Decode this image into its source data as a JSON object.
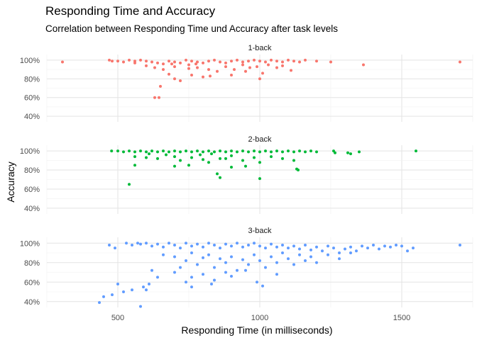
{
  "chart_data": {
    "type": "scatter",
    "title": "Responding Time and Accuracy",
    "subtitle": "Correlation between Responding Time und Accuracy after task levels",
    "xlabel": "Responding Time (in milliseconds)",
    "ylabel": "Accuracy",
    "xlim": [
      250,
      1750
    ],
    "ylim": [
      0.34,
      1.06
    ],
    "x_ticks": [
      500,
      1000,
      1500
    ],
    "y_ticks": [
      0.4,
      0.6,
      0.8,
      1.0
    ],
    "y_tick_labels": [
      "40%",
      "60%",
      "80%",
      "100%"
    ],
    "grid": true,
    "facets": [
      {
        "label": "1-back",
        "color": "#F8766D",
        "points": [
          [
            305,
            0.98
          ],
          [
            470,
            1.0
          ],
          [
            480,
            0.99
          ],
          [
            500,
            0.99
          ],
          [
            520,
            0.98
          ],
          [
            540,
            1.0
          ],
          [
            560,
            0.99
          ],
          [
            580,
            1.0
          ],
          [
            600,
            0.99
          ],
          [
            620,
            0.98
          ],
          [
            640,
            0.97
          ],
          [
            660,
            0.96
          ],
          [
            680,
            0.99
          ],
          [
            700,
            0.98
          ],
          [
            720,
            0.97
          ],
          [
            740,
            1.0
          ],
          [
            760,
            0.99
          ],
          [
            780,
            0.98
          ],
          [
            800,
            0.97
          ],
          [
            820,
            0.99
          ],
          [
            840,
            1.0
          ],
          [
            860,
            0.98
          ],
          [
            880,
            0.97
          ],
          [
            900,
            0.99
          ],
          [
            920,
            1.0
          ],
          [
            940,
            0.98
          ],
          [
            960,
            0.99
          ],
          [
            980,
            1.0
          ],
          [
            1000,
            0.99
          ],
          [
            1020,
            0.98
          ],
          [
            1040,
            1.0
          ],
          [
            1060,
            0.99
          ],
          [
            1080,
            0.98
          ],
          [
            1100,
            1.0
          ],
          [
            1120,
            0.99
          ],
          [
            1140,
            0.98
          ],
          [
            1160,
            1.0
          ],
          [
            1200,
            0.99
          ],
          [
            1250,
            0.98
          ],
          [
            1365,
            0.95
          ],
          [
            1705,
            0.98
          ],
          [
            600,
            0.94
          ],
          [
            630,
            0.92
          ],
          [
            660,
            0.9
          ],
          [
            700,
            0.93
          ],
          [
            750,
            0.95
          ],
          [
            780,
            0.92
          ],
          [
            820,
            0.9
          ],
          [
            850,
            0.88
          ],
          [
            880,
            0.93
          ],
          [
            910,
            0.9
          ],
          [
            950,
            0.88
          ],
          [
            990,
            0.93
          ],
          [
            1010,
            0.86
          ],
          [
            1060,
            0.92
          ],
          [
            1110,
            0.89
          ],
          [
            700,
            0.8
          ],
          [
            680,
            0.85
          ],
          [
            760,
            0.84
          ],
          [
            800,
            0.82
          ],
          [
            900,
            0.84
          ],
          [
            1000,
            0.8
          ],
          [
            720,
            0.78
          ],
          [
            650,
            0.72
          ],
          [
            825,
            0.83
          ],
          [
            750,
            0.91
          ],
          [
            775,
            0.96
          ],
          [
            690,
            0.96
          ],
          [
            560,
            0.97
          ],
          [
            940,
            0.95
          ],
          [
            965,
            0.92
          ],
          [
            1030,
            0.95
          ],
          [
            1080,
            0.94
          ],
          [
            630,
            0.6
          ],
          [
            645,
            0.6
          ]
        ]
      },
      {
        "label": "2-back",
        "color": "#00BA38",
        "points": [
          [
            478,
            1.0
          ],
          [
            500,
            1.0
          ],
          [
            520,
            0.99
          ],
          [
            540,
            1.0
          ],
          [
            560,
            0.99
          ],
          [
            580,
            1.0
          ],
          [
            600,
            0.99
          ],
          [
            620,
            1.0
          ],
          [
            640,
            0.99
          ],
          [
            660,
            1.0
          ],
          [
            680,
            0.99
          ],
          [
            700,
            1.0
          ],
          [
            720,
            0.99
          ],
          [
            740,
            1.0
          ],
          [
            760,
            0.99
          ],
          [
            780,
            1.0
          ],
          [
            800,
            0.99
          ],
          [
            820,
            1.0
          ],
          [
            840,
            0.99
          ],
          [
            860,
            1.0
          ],
          [
            880,
            0.99
          ],
          [
            900,
            1.0
          ],
          [
            920,
            0.99
          ],
          [
            940,
            1.0
          ],
          [
            960,
            0.99
          ],
          [
            980,
            1.0
          ],
          [
            1000,
            0.99
          ],
          [
            1020,
            1.0
          ],
          [
            1040,
            0.99
          ],
          [
            1060,
            1.0
          ],
          [
            1080,
            0.99
          ],
          [
            1100,
            1.0
          ],
          [
            1120,
            0.99
          ],
          [
            1140,
            1.0
          ],
          [
            1160,
            0.99
          ],
          [
            1180,
            1.0
          ],
          [
            1200,
            0.99
          ],
          [
            1260,
            1.0
          ],
          [
            1265,
            0.98
          ],
          [
            1310,
            0.98
          ],
          [
            1320,
            0.97
          ],
          [
            1350,
            0.99
          ],
          [
            1550,
            1.0
          ],
          [
            560,
            0.94
          ],
          [
            600,
            0.93
          ],
          [
            640,
            0.92
          ],
          [
            700,
            0.94
          ],
          [
            720,
            0.9
          ],
          [
            760,
            0.93
          ],
          [
            800,
            0.91
          ],
          [
            820,
            0.88
          ],
          [
            860,
            0.92
          ],
          [
            900,
            0.95
          ],
          [
            940,
            0.9
          ],
          [
            980,
            0.93
          ],
          [
            1000,
            0.88
          ],
          [
            1040,
            0.94
          ],
          [
            1080,
            0.92
          ],
          [
            1120,
            0.9
          ],
          [
            1130,
            0.81
          ],
          [
            1135,
            0.8
          ],
          [
            560,
            0.85
          ],
          [
            700,
            0.84
          ],
          [
            750,
            0.85
          ],
          [
            850,
            0.76
          ],
          [
            860,
            0.72
          ],
          [
            900,
            0.83
          ],
          [
            950,
            0.84
          ],
          [
            1000,
            0.71
          ],
          [
            880,
            0.92
          ],
          [
            790,
            0.96
          ],
          [
            540,
            0.65
          ],
          [
            830,
            0.97
          ],
          [
            670,
            0.96
          ],
          [
            610,
            0.97
          ]
        ]
      },
      {
        "label": "3-back",
        "color": "#619CFF",
        "points": [
          [
            470,
            0.98
          ],
          [
            490,
            0.95
          ],
          [
            530,
            1.0
          ],
          [
            550,
            0.98
          ],
          [
            570,
            1.0
          ],
          [
            580,
            0.99
          ],
          [
            600,
            1.0
          ],
          [
            620,
            0.97
          ],
          [
            640,
            0.99
          ],
          [
            660,
            0.96
          ],
          [
            680,
            1.0
          ],
          [
            700,
            0.98
          ],
          [
            720,
            0.95
          ],
          [
            740,
            1.0
          ],
          [
            760,
            0.97
          ],
          [
            780,
            0.99
          ],
          [
            800,
            0.96
          ],
          [
            820,
            1.0
          ],
          [
            840,
            0.98
          ],
          [
            860,
            0.95
          ],
          [
            880,
            0.99
          ],
          [
            900,
            0.97
          ],
          [
            920,
            1.0
          ],
          [
            940,
            0.96
          ],
          [
            960,
            0.98
          ],
          [
            980,
            1.0
          ],
          [
            1000,
            0.97
          ],
          [
            1020,
            0.95
          ],
          [
            1040,
            0.99
          ],
          [
            1060,
            0.96
          ],
          [
            1080,
            0.98
          ],
          [
            1100,
            0.95
          ],
          [
            1120,
            0.97
          ],
          [
            1140,
            0.94
          ],
          [
            1160,
            0.98
          ],
          [
            1180,
            0.93
          ],
          [
            1200,
            0.96
          ],
          [
            1220,
            0.92
          ],
          [
            1240,
            0.97
          ],
          [
            1260,
            0.95
          ],
          [
            1280,
            0.9
          ],
          [
            1300,
            0.94
          ],
          [
            1320,
            0.96
          ],
          [
            1340,
            0.92
          ],
          [
            1360,
            0.97
          ],
          [
            1380,
            0.95
          ],
          [
            1400,
            0.98
          ],
          [
            1420,
            0.94
          ],
          [
            1440,
            0.97
          ],
          [
            1460,
            0.96
          ],
          [
            1480,
            0.98
          ],
          [
            1500,
            0.97
          ],
          [
            1520,
            0.92
          ],
          [
            1540,
            0.95
          ],
          [
            1705,
            0.98
          ],
          [
            660,
            0.88
          ],
          [
            700,
            0.86
          ],
          [
            740,
            0.82
          ],
          [
            760,
            0.9
          ],
          [
            780,
            0.78
          ],
          [
            800,
            0.85
          ],
          [
            820,
            0.88
          ],
          [
            840,
            0.75
          ],
          [
            860,
            0.84
          ],
          [
            880,
            0.8
          ],
          [
            900,
            0.86
          ],
          [
            920,
            0.72
          ],
          [
            940,
            0.83
          ],
          [
            960,
            0.78
          ],
          [
            980,
            0.88
          ],
          [
            1000,
            0.82
          ],
          [
            1020,
            0.75
          ],
          [
            1040,
            0.86
          ],
          [
            1060,
            0.8
          ],
          [
            1080,
            0.9
          ],
          [
            1100,
            0.84
          ],
          [
            1120,
            0.78
          ],
          [
            1140,
            0.88
          ],
          [
            1160,
            0.82
          ],
          [
            1180,
            0.86
          ],
          [
            1200,
            0.8
          ],
          [
            1240,
            0.88
          ],
          [
            1280,
            0.84
          ],
          [
            1320,
            0.9
          ],
          [
            700,
            0.7
          ],
          [
            720,
            0.75
          ],
          [
            740,
            0.6
          ],
          [
            760,
            0.65
          ],
          [
            800,
            0.68
          ],
          [
            840,
            0.62
          ],
          [
            880,
            0.7
          ],
          [
            900,
            0.66
          ],
          [
            950,
            0.72
          ],
          [
            990,
            0.6
          ],
          [
            1010,
            0.56
          ],
          [
            620,
            0.72
          ],
          [
            640,
            0.65
          ],
          [
            610,
            0.58
          ],
          [
            590,
            0.55
          ],
          [
            600,
            0.52
          ],
          [
            520,
            0.5
          ],
          [
            500,
            0.58
          ],
          [
            480,
            0.47
          ],
          [
            450,
            0.45
          ],
          [
            435,
            0.39
          ],
          [
            580,
            0.35
          ],
          [
            550,
            0.52
          ],
          [
            760,
            0.55
          ],
          [
            830,
            0.58
          ],
          [
            1060,
            0.68
          ]
        ]
      }
    ]
  }
}
